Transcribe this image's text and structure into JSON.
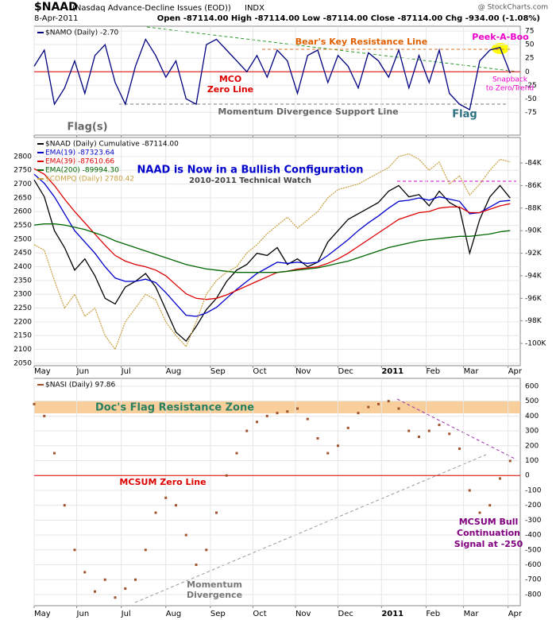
{
  "header": {
    "symbol": "$NAAD",
    "name": "(Nasdaq Advance-Decline Issues (EOD))",
    "exchange": "INDX",
    "credit": "@ StockCharts.com",
    "date": "8-Apr-2011",
    "quote": "Open -87114.00  High -87114.00  Low -87114.00  Close -87114.00  Chg -934.00 (-1.08%)"
  },
  "chart_data": [
    {
      "type": "line",
      "grid": true,
      "series": [
        {
          "name": "$NAMO (Daily) -2.70",
          "color": "#000080",
          "values": [
            10,
            40,
            -60,
            -30,
            20,
            -40,
            30,
            50,
            -20,
            -60,
            10,
            60,
            30,
            -10,
            20,
            -50,
            -60,
            50,
            60,
            40,
            20,
            0,
            30,
            -10,
            40,
            20,
            -40,
            30,
            40,
            -20,
            30,
            10,
            -30,
            35,
            20,
            -10,
            40,
            -30,
            30,
            -20,
            40,
            -40,
            -60,
            -70,
            20,
            40,
            45,
            -2.7
          ]
        }
      ],
      "xlim": [
        0,
        48
      ],
      "xticks": [
        {
          "value": 0,
          "label": "May"
        },
        {
          "value": 4.2,
          "label": "Jun"
        },
        {
          "value": 8.6,
          "label": "Jul"
        },
        {
          "value": 13,
          "label": "Aug"
        },
        {
          "value": 17.4,
          "label": "Sep"
        },
        {
          "value": 21.6,
          "label": "Oct"
        },
        {
          "value": 25.8,
          "label": "Nov"
        },
        {
          "value": 30,
          "label": "Dec"
        },
        {
          "value": 34.3,
          "label": "2011"
        },
        {
          "value": 38.7,
          "label": "Feb"
        },
        {
          "value": 42.4,
          "label": "Mar"
        },
        {
          "value": 46.8,
          "label": "Apr"
        }
      ],
      "ylim": [
        -117,
        84
      ],
      "yticks": [
        75,
        50,
        25,
        0,
        -25,
        -50,
        -75
      ],
      "annotations": [
        "Bear's Key Resistance Line",
        "MCO",
        "Zero Line",
        "Peek-A-Boo",
        "Snapback",
        "to Zero/Trend",
        "Momentum Divergence Support Line",
        "Flag(s)",
        "Flag"
      ]
    },
    {
      "type": "line",
      "grid": true,
      "title": "$NAAD (Daily) Cumulative -87114.00",
      "series": [
        {
          "name": "$NAAD (Daily) Cumulative -87114.00",
          "color": "#000000",
          "axis": "y2",
          "values": [
            -85500,
            -87000,
            -90000,
            -91500,
            -93500,
            -92500,
            -94000,
            -96000,
            -96500,
            -95000,
            -94500,
            -93800,
            -95000,
            -97000,
            -99000,
            -99800,
            -98500,
            -97000,
            -96000,
            -94500,
            -93500,
            -93000,
            -92000,
            -92200,
            -91500,
            -93000,
            -92500,
            -93200,
            -92800,
            -91000,
            -90000,
            -89000,
            -88500,
            -88000,
            -87500,
            -86500,
            -86000,
            -87000,
            -86800,
            -87800,
            -86500,
            -87500,
            -88000,
            -92000,
            -89000,
            -87000,
            -86000,
            -87114
          ]
        },
        {
          "name": "EMA(19) -87323.64",
          "color": "#0000cc",
          "axis": "y2",
          "values": [
            -85000,
            -85800,
            -87000,
            -88500,
            -90000,
            -91000,
            -92000,
            -93200,
            -94200,
            -94500,
            -94500,
            -94300,
            -94600,
            -95500,
            -96500,
            -97500,
            -97600,
            -97300,
            -96800,
            -96000,
            -95200,
            -94500,
            -93800,
            -93300,
            -92800,
            -92900,
            -92800,
            -92900,
            -92800,
            -92200,
            -91500,
            -90800,
            -90000,
            -89300,
            -88700,
            -88000,
            -87400,
            -87300,
            -87100,
            -87300,
            -87000,
            -87200,
            -87400,
            -88500,
            -88400,
            -87900,
            -87400,
            -87323.64
          ]
        },
        {
          "name": "EMA(39) -87610.66",
          "color": "#dd0000",
          "axis": "y2",
          "values": [
            -84500,
            -85000,
            -86000,
            -87200,
            -88300,
            -89300,
            -90300,
            -91300,
            -92200,
            -92700,
            -93000,
            -93200,
            -93500,
            -94000,
            -94800,
            -95600,
            -96000,
            -96100,
            -96000,
            -95700,
            -95300,
            -94900,
            -94500,
            -94100,
            -93700,
            -93600,
            -93400,
            -93300,
            -93200,
            -92900,
            -92500,
            -92000,
            -91400,
            -90800,
            -90200,
            -89600,
            -89000,
            -88700,
            -88400,
            -88300,
            -88000,
            -87900,
            -87900,
            -88400,
            -88400,
            -88100,
            -87800,
            -87610.66
          ]
        },
        {
          "name": "EMA(200) -89994.30",
          "color": "#006600",
          "axis": "y2",
          "values": [
            -89500,
            -89400,
            -89400,
            -89500,
            -89700,
            -89900,
            -90200,
            -90500,
            -90900,
            -91200,
            -91500,
            -91800,
            -92100,
            -92400,
            -92700,
            -93000,
            -93200,
            -93400,
            -93500,
            -93600,
            -93700,
            -93700,
            -93700,
            -93700,
            -93700,
            -93600,
            -93500,
            -93400,
            -93300,
            -93100,
            -92900,
            -92700,
            -92400,
            -92100,
            -91800,
            -91500,
            -91300,
            -91100,
            -90900,
            -90800,
            -90700,
            -90600,
            -90500,
            -90500,
            -90400,
            -90300,
            -90100,
            -89994.3
          ]
        },
        {
          "name": "$COMPQ (Daily) 2780.42",
          "color": "#c8a040",
          "values": [
            2480,
            2460,
            2350,
            2250,
            2300,
            2220,
            2250,
            2150,
            2100,
            2200,
            2250,
            2300,
            2280,
            2200,
            2150,
            2110,
            2200,
            2300,
            2350,
            2380,
            2400,
            2450,
            2480,
            2520,
            2550,
            2580,
            2540,
            2570,
            2600,
            2650,
            2680,
            2690,
            2700,
            2720,
            2740,
            2760,
            2800,
            2810,
            2790,
            2750,
            2780,
            2700,
            2730,
            2660,
            2700,
            2750,
            2790,
            2780.42
          ]
        }
      ],
      "xlim": [
        0,
        48
      ],
      "xticks": [
        {
          "value": 0,
          "label": "May"
        },
        {
          "value": 4.2,
          "label": "Jun"
        },
        {
          "value": 8.6,
          "label": "Jul"
        },
        {
          "value": 13,
          "label": "Aug"
        },
        {
          "value": 17.4,
          "label": "Sep"
        },
        {
          "value": 21.6,
          "label": "Oct"
        },
        {
          "value": 25.8,
          "label": "Nov"
        },
        {
          "value": 30,
          "label": "Dec"
        },
        {
          "value": 34.3,
          "label": "2011"
        },
        {
          "value": 38.7,
          "label": "Feb"
        },
        {
          "value": 42.4,
          "label": "Mar"
        },
        {
          "value": 46.8,
          "label": "Apr"
        }
      ],
      "ylim": [
        2041,
        2869
      ],
      "yticks": [
        2800,
        2750,
        2700,
        2650,
        2600,
        2550,
        2500,
        2450,
        2400,
        2350,
        2300,
        2250,
        2200,
        2150,
        2100,
        2050
      ],
      "y2lim": [
        -101970,
        -81740
      ],
      "y2ticks": [
        {
          "value": -84000,
          "label": "-84K"
        },
        {
          "value": -86000,
          "label": "-86K"
        },
        {
          "value": -88000,
          "label": "-88K"
        },
        {
          "value": -90000,
          "label": "-90K"
        },
        {
          "value": -92000,
          "label": "-92K"
        },
        {
          "value": -94000,
          "label": "-94K"
        },
        {
          "value": -96000,
          "label": "-96K"
        },
        {
          "value": -98000,
          "label": "-98K"
        },
        {
          "value": -100000,
          "label": "-100K"
        }
      ],
      "annotations": [
        "NAAD is Now in a Bullish Configuration",
        "2010-2011 Technical Watch"
      ]
    },
    {
      "type": "dot",
      "grid": true,
      "series": [
        {
          "name": "$NASI (Daily) 97.86",
          "color": "#a0522d",
          "values": [
            480,
            400,
            150,
            -200,
            -500,
            -650,
            -780,
            -700,
            -820,
            -760,
            -700,
            -500,
            -250,
            -150,
            -200,
            -400,
            -600,
            -500,
            -250,
            0,
            150,
            300,
            360,
            400,
            420,
            430,
            450,
            380,
            250,
            150,
            200,
            320,
            420,
            460,
            480,
            500,
            450,
            300,
            260,
            300,
            340,
            280,
            180,
            -100,
            -250,
            -200,
            -20,
            97.86
          ]
        }
      ],
      "xlim": [
        0,
        48
      ],
      "xticks": [
        {
          "value": 0,
          "label": "May"
        },
        {
          "value": 4.2,
          "label": "Jun"
        },
        {
          "value": 8.6,
          "label": "Jul"
        },
        {
          "value": 13,
          "label": "Aug"
        },
        {
          "value": 17.4,
          "label": "Sep"
        },
        {
          "value": 21.6,
          "label": "Oct"
        },
        {
          "value": 25.8,
          "label": "Nov"
        },
        {
          "value": 30,
          "label": "Dec"
        },
        {
          "value": 34.3,
          "label": "2011"
        },
        {
          "value": 38.7,
          "label": "Feb"
        },
        {
          "value": 42.4,
          "label": "Mar"
        },
        {
          "value": 46.8,
          "label": "Apr"
        }
      ],
      "ylim": [
        -875,
        653
      ],
      "yticks": [
        600,
        500,
        400,
        300,
        200,
        100,
        0,
        -100,
        -200,
        -300,
        -400,
        -500,
        -600,
        -700,
        -800
      ],
      "annotations": [
        "Doc's Flag Resistance Zone",
        "MCSUM Zero Line",
        "Momentum",
        "Divergence",
        "MCSUM Bull",
        "Continuation",
        "Signal at -250"
      ]
    }
  ]
}
